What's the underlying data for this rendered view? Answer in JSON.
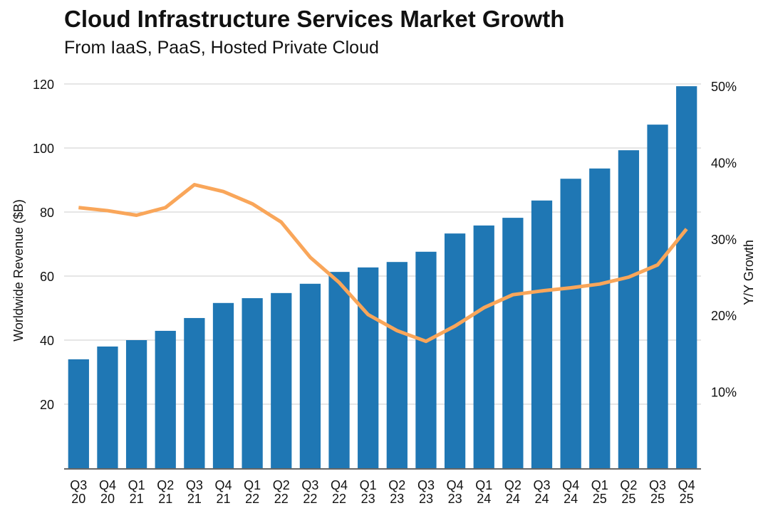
{
  "header": {
    "title": "Cloud Infrastructure Services Market Growth",
    "subtitle": "From IaaS, PaaS, Hosted Private Cloud"
  },
  "chart_data": {
    "type": "bar",
    "title": "Cloud Infrastructure Services Market Growth",
    "subtitle": "From IaaS, PaaS, Hosted Private Cloud",
    "categories": [
      "Q3 20",
      "Q4 20",
      "Q1 21",
      "Q2 21",
      "Q3 21",
      "Q4 21",
      "Q1 22",
      "Q2 22",
      "Q3 22",
      "Q4 22",
      "Q1 23",
      "Q2 23",
      "Q3 23",
      "Q4 23",
      "Q1 24",
      "Q2 24",
      "Q3 24",
      "Q4 24",
      "Q1 25",
      "Q2 25",
      "Q3 25",
      "Q4 25"
    ],
    "category_lines": [
      [
        "Q3",
        "20"
      ],
      [
        "Q4",
        "20"
      ],
      [
        "Q1",
        "21"
      ],
      [
        "Q2",
        "21"
      ],
      [
        "Q3",
        "21"
      ],
      [
        "Q4",
        "21"
      ],
      [
        "Q1",
        "22"
      ],
      [
        "Q2",
        "22"
      ],
      [
        "Q3",
        "22"
      ],
      [
        "Q4",
        "22"
      ],
      [
        "Q1",
        "23"
      ],
      [
        "Q2",
        "23"
      ],
      [
        "Q3",
        "23"
      ],
      [
        "Q4",
        "23"
      ],
      [
        "Q1",
        "24"
      ],
      [
        "Q2",
        "24"
      ],
      [
        "Q3",
        "24"
      ],
      [
        "Q4",
        "24"
      ],
      [
        "Q1",
        "25"
      ],
      [
        "Q2",
        "25"
      ],
      [
        "Q3",
        "25"
      ],
      [
        "Q4",
        "25"
      ]
    ],
    "series": [
      {
        "name": "Worldwide Revenue ($B)",
        "type": "bar",
        "axis": "left",
        "color": "#1f77b4",
        "values": [
          34.0,
          38.0,
          40.0,
          42.9,
          46.9,
          51.6,
          53.1,
          54.7,
          57.6,
          61.3,
          62.7,
          64.4,
          67.6,
          73.3,
          75.8,
          78.2,
          83.6,
          90.4,
          93.6,
          99.3,
          107.3,
          119.3
        ]
      },
      {
        "name": "Y/Y Growth",
        "type": "line",
        "axis": "right",
        "color": "#f9a65a",
        "values": [
          34.1,
          33.7,
          33.1,
          34.1,
          37.1,
          36.2,
          34.6,
          32.2,
          27.6,
          24.3,
          20.1,
          18.0,
          16.6,
          18.6,
          21.0,
          22.7,
          23.2,
          23.6,
          24.1,
          25.0,
          26.6,
          31.3
        ]
      }
    ],
    "ylabel": "Worldwide Revenue ($B)",
    "ylim": [
      0,
      120
    ],
    "yticks": [
      20,
      40,
      60,
      80,
      100,
      120
    ],
    "y2label": "Y/Y Growth",
    "y2lim": [
      0,
      50
    ],
    "y2ticks": [
      "10%",
      "20%",
      "30%",
      "40%",
      "50%"
    ],
    "y2tick_values": [
      10,
      20,
      30,
      40,
      50
    ],
    "grid": true,
    "legend": "none"
  }
}
